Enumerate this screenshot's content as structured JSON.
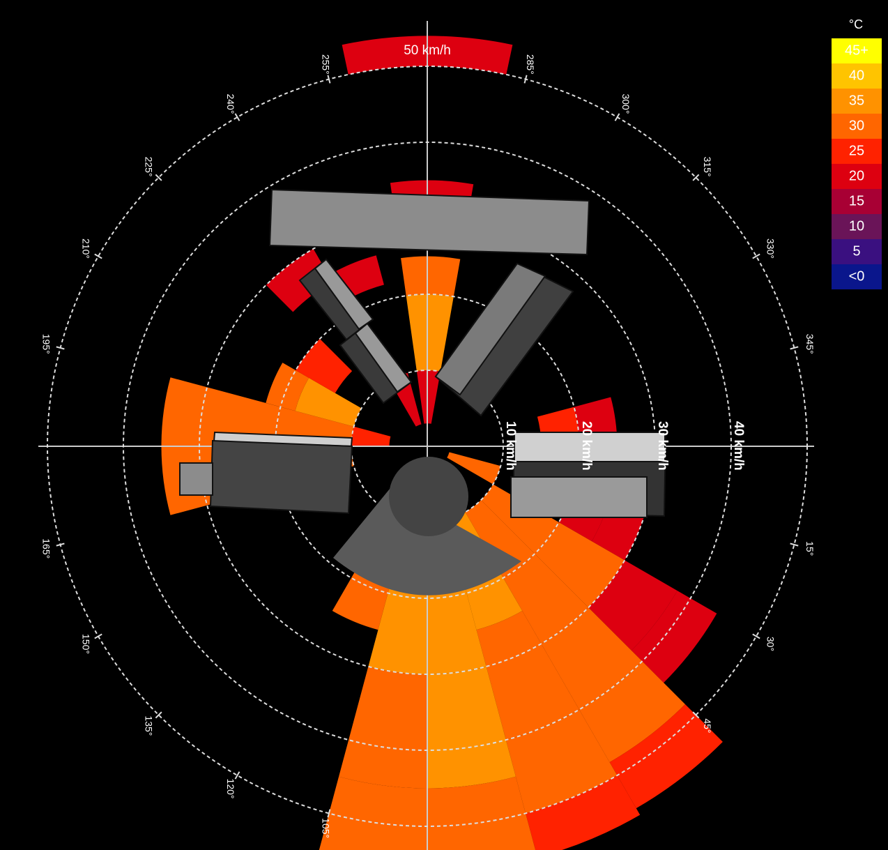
{
  "chart_data": {
    "type": "polar",
    "rlim": [
      0,
      50
    ],
    "rticks": [
      {
        "value": 10,
        "label": "10 km/h"
      },
      {
        "value": 20,
        "label": "20 km/h"
      },
      {
        "value": 30,
        "label": "30 km/h"
      },
      {
        "value": 40,
        "label": "40 km/h"
      },
      {
        "value": 50,
        "label": "50 km/h"
      }
    ],
    "angle_ticks": [
      {
        "value": 15,
        "label": "15°"
      },
      {
        "value": 30,
        "label": "30°"
      },
      {
        "value": 45,
        "label": "45°"
      },
      {
        "value": 105,
        "label": "105°"
      },
      {
        "value": 120,
        "label": "120°"
      },
      {
        "value": 135,
        "label": "135°"
      },
      {
        "value": 150,
        "label": "150°"
      },
      {
        "value": 165,
        "label": "165°"
      },
      {
        "value": 195,
        "label": "195°"
      },
      {
        "value": 210,
        "label": "210°"
      },
      {
        "value": 225,
        "label": "225°"
      },
      {
        "value": 240,
        "label": "240°"
      },
      {
        "value": 255,
        "label": "255°"
      },
      {
        "value": 285,
        "label": "285°"
      },
      {
        "value": 300,
        "label": "300°"
      },
      {
        "value": 315,
        "label": "315°"
      },
      {
        "value": 330,
        "label": "330°"
      },
      {
        "value": 345,
        "label": "345°"
      }
    ],
    "legend": {
      "title": "°C",
      "items": [
        {
          "value": 45,
          "label": "45+",
          "color": "#ffff00"
        },
        {
          "value": 40,
          "color": "#ffc400"
        },
        {
          "value": 35,
          "color": "#ff9200"
        },
        {
          "value": 30,
          "color": "#ff6600"
        },
        {
          "value": 25,
          "color": "#ff2200"
        },
        {
          "value": 20,
          "color": "#dd0010"
        },
        {
          "value": 15,
          "color": "#a80034"
        },
        {
          "value": 10,
          "color": "#6a1458"
        },
        {
          "value": 5,
          "color": "#3a1080"
        },
        {
          "value": 0,
          "label": "<0",
          "color": "#0a168c"
        }
      ]
    },
    "sectors": [
      {
        "from": 345,
        "to": 360,
        "cells": [
          {
            "lo": 15,
            "hi": 20,
            "t": 25
          },
          {
            "lo": 20,
            "hi": 25,
            "t": 24
          }
        ]
      },
      {
        "from": 15,
        "to": 30,
        "cells": [
          {
            "lo": 3,
            "hi": 10,
            "t": 31
          },
          {
            "lo": 20,
            "hi": 25,
            "t": 24
          },
          {
            "lo": 25,
            "hi": 30,
            "t": 22
          }
        ]
      },
      {
        "from": 30,
        "to": 45,
        "cells": [
          {
            "lo": 10,
            "hi": 20,
            "t": 32
          },
          {
            "lo": 20,
            "hi": 30,
            "t": 30
          },
          {
            "lo": 30,
            "hi": 38,
            "t": 20
          },
          {
            "lo": 38,
            "hi": 44,
            "t": 24
          }
        ]
      },
      {
        "from": 45,
        "to": 60,
        "cells": [
          {
            "lo": 10,
            "hi": 20,
            "t": 33
          },
          {
            "lo": 20,
            "hi": 30,
            "t": 32
          },
          {
            "lo": 30,
            "hi": 40,
            "t": 31
          },
          {
            "lo": 40,
            "hi": 48,
            "t": 30
          },
          {
            "lo": 48,
            "hi": 55,
            "t": 26
          }
        ]
      },
      {
        "from": 60,
        "to": 75,
        "cells": [
          {
            "lo": 10,
            "hi": 25,
            "t": 35
          },
          {
            "lo": 25,
            "hi": 40,
            "t": 33
          },
          {
            "lo": 40,
            "hi": 50,
            "t": 31
          },
          {
            "lo": 50,
            "hi": 56,
            "t": 27
          }
        ]
      },
      {
        "from": 75,
        "to": 90,
        "cells": [
          {
            "lo": 10,
            "hi": 30,
            "t": 36
          },
          {
            "lo": 30,
            "hi": 45,
            "t": 35
          },
          {
            "lo": 45,
            "hi": 56,
            "t": 33
          }
        ]
      },
      {
        "from": 90,
        "to": 105,
        "cells": [
          {
            "lo": 10,
            "hi": 30,
            "t": 35
          },
          {
            "lo": 30,
            "hi": 45,
            "t": 34
          },
          {
            "lo": 45,
            "hi": 56,
            "t": 33
          }
        ]
      },
      {
        "from": 105,
        "to": 120,
        "cells": [
          {
            "lo": 18,
            "hi": 25,
            "t": 30
          }
        ]
      },
      {
        "from": 165,
        "to": 180,
        "cells": [
          {
            "lo": 10,
            "hi": 20,
            "t": 30
          },
          {
            "lo": 20,
            "hi": 35,
            "t": 31
          }
        ]
      },
      {
        "from": 180,
        "to": 195,
        "cells": [
          {
            "lo": 5,
            "hi": 10,
            "t": 25
          },
          {
            "lo": 10,
            "hi": 20,
            "t": 33
          },
          {
            "lo": 20,
            "hi": 35,
            "t": 31
          }
        ]
      },
      {
        "from": 195,
        "to": 210,
        "cells": [
          {
            "lo": 10,
            "hi": 18,
            "t": 35
          },
          {
            "lo": 18,
            "hi": 22,
            "t": 30
          }
        ]
      },
      {
        "from": 210,
        "to": 225,
        "cells": [
          {
            "lo": 14,
            "hi": 20,
            "t": 28
          }
        ]
      },
      {
        "from": 225,
        "to": 240,
        "cells": [
          {
            "lo": 25,
            "hi": 30,
            "t": 24
          }
        ]
      },
      {
        "from": 240,
        "to": 255,
        "cells": [
          {
            "lo": 3,
            "hi": 10,
            "t": 24
          },
          {
            "lo": 22,
            "hi": 26,
            "t": 24
          }
        ]
      },
      {
        "from": 262,
        "to": 280,
        "cells": [
          {
            "lo": 3,
            "hi": 10,
            "t": 24
          },
          {
            "lo": 10,
            "hi": 20,
            "t": 35
          },
          {
            "lo": 20,
            "hi": 25,
            "t": 33
          },
          {
            "lo": 33,
            "hi": 35,
            "t": 22
          }
        ]
      },
      {
        "from": 258,
        "to": 282,
        "cells": [
          {
            "lo": 50,
            "hi": 54,
            "t": 24
          }
        ]
      }
    ]
  }
}
